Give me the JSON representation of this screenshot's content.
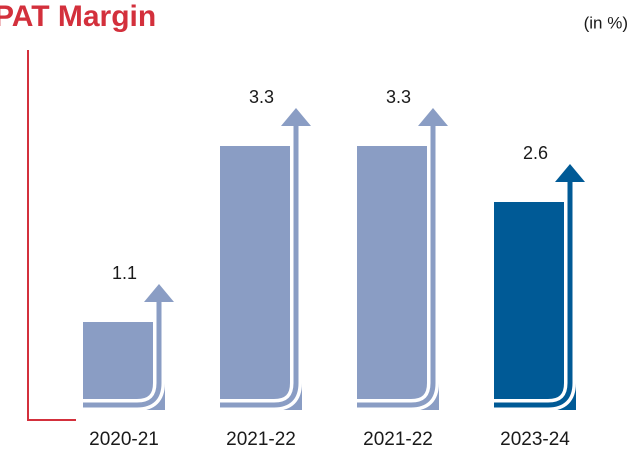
{
  "chart_data": {
    "type": "bar",
    "title": "PAT Margin",
    "subtitle": "(in %)",
    "categories": [
      "2020-21",
      "2021-22",
      "2021-22",
      "2023-24"
    ],
    "values": [
      1.1,
      3.3,
      3.3,
      2.6
    ],
    "colors": [
      "#8a9dc4",
      "#8a9dc4",
      "#8a9dc4",
      "#005a96"
    ],
    "title_color": "#d3303c"
  }
}
